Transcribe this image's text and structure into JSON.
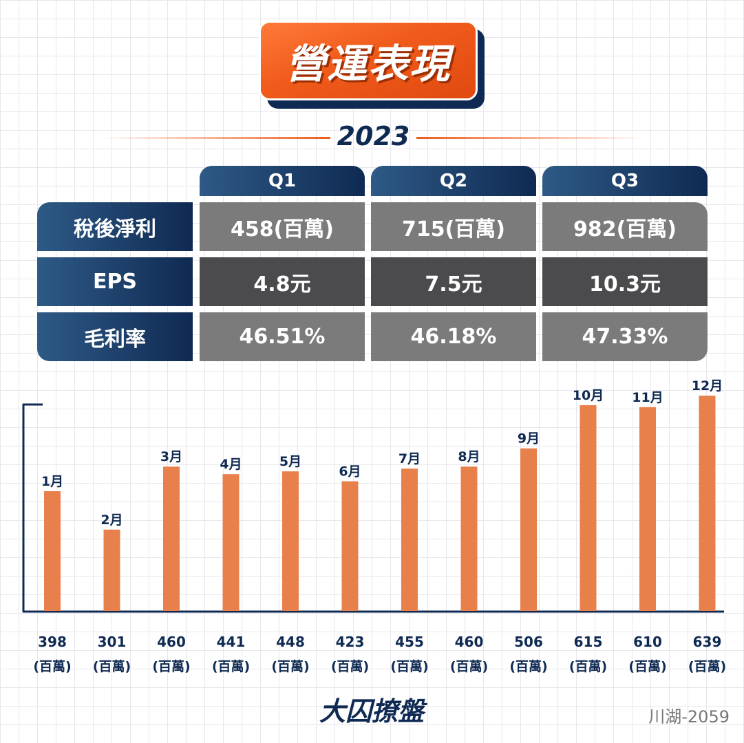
{
  "header": {
    "title": "營運表現",
    "year": "2023"
  },
  "table": {
    "quarters": [
      "Q1",
      "Q2",
      "Q3"
    ],
    "rows": [
      {
        "label": "稅後淨利",
        "values": [
          "458(百萬)",
          "715(百萬)",
          "982(百萬)"
        ]
      },
      {
        "label": "EPS",
        "values": [
          "4.8元",
          "7.5元",
          "10.3元"
        ]
      },
      {
        "label": "毛利率",
        "values": [
          "46.51%",
          "46.18%",
          "47.33%"
        ]
      }
    ]
  },
  "colors": {
    "navy": "#0f2a52",
    "bar": "#e8804c",
    "accent": "#f05a1a"
  },
  "chart_data": {
    "type": "bar",
    "title": "",
    "xlabel": "",
    "ylabel": "",
    "categories": [
      "1月",
      "2月",
      "3月",
      "4月",
      "5月",
      "6月",
      "7月",
      "8月",
      "9月",
      "10月",
      "11月",
      "12月"
    ],
    "values": [
      398,
      301,
      460,
      441,
      448,
      423,
      455,
      460,
      506,
      615,
      610,
      639
    ],
    "unit": "(百萬)",
    "ylim": [
      200,
      700
    ],
    "grid": false,
    "legend": "none"
  },
  "footer": {
    "brand": "大囚撩盤",
    "code": "川湖-2059"
  }
}
